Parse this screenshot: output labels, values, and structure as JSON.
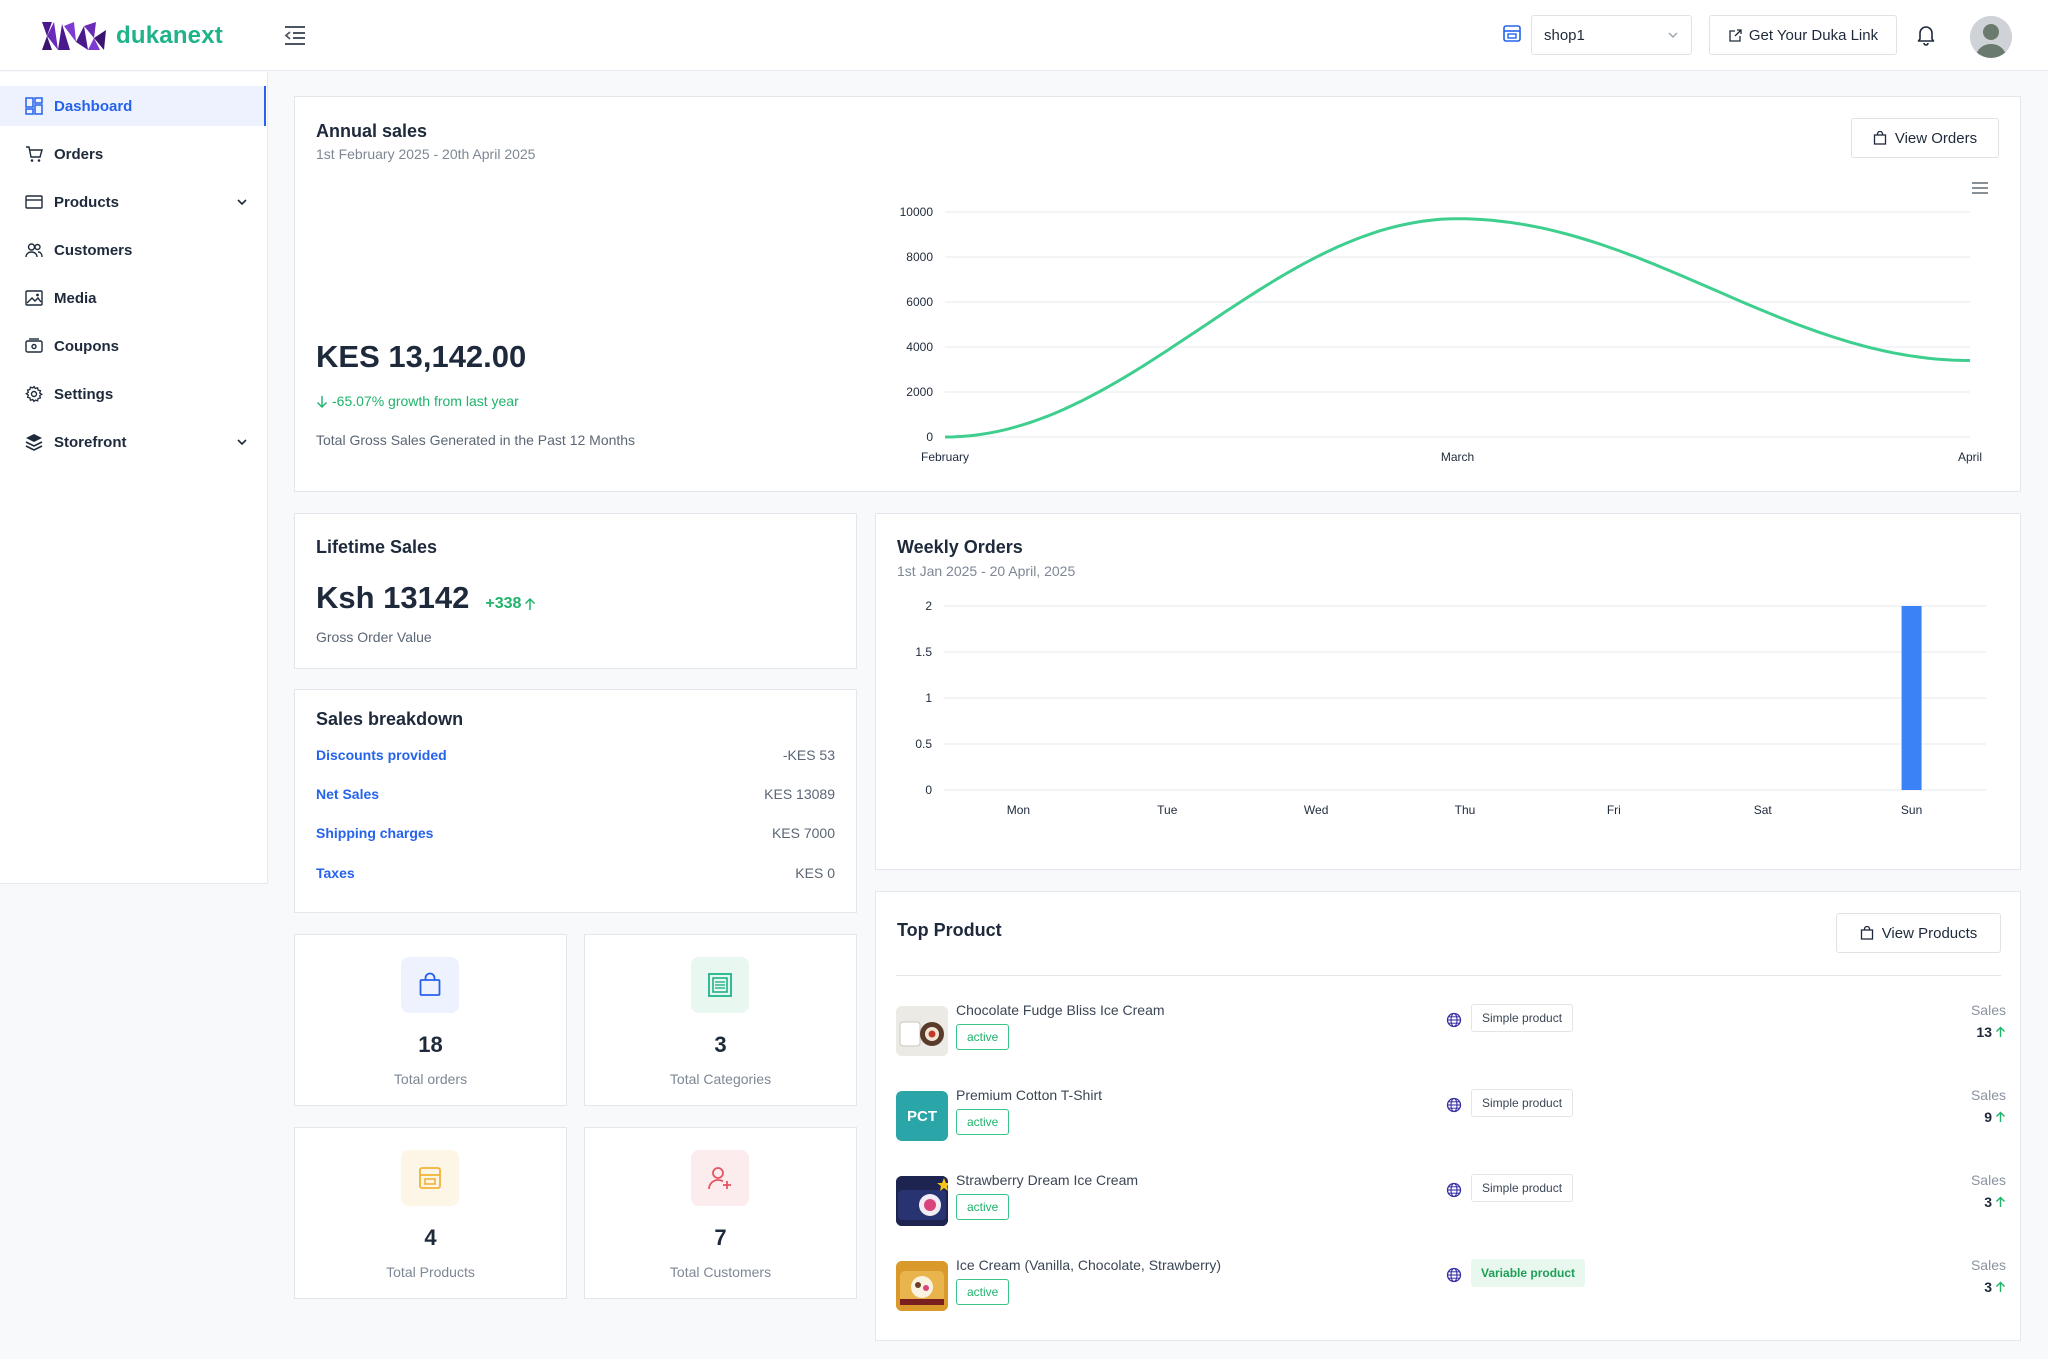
{
  "header": {
    "logo_text": "dukanext",
    "shop_selected": "shop1",
    "duka_link_label": "Get Your Duka Link"
  },
  "sidebar": {
    "items": [
      {
        "label": "Dashboard",
        "icon": "dashboard-icon"
      },
      {
        "label": "Orders",
        "icon": "cart-icon"
      },
      {
        "label": "Products",
        "icon": "box-icon"
      },
      {
        "label": "Customers",
        "icon": "users-icon"
      },
      {
        "label": "Media",
        "icon": "image-icon"
      },
      {
        "label": "Coupons",
        "icon": "ticket-icon"
      },
      {
        "label": "Settings",
        "icon": "gear-icon"
      },
      {
        "label": "Storefront",
        "icon": "layers-icon"
      }
    ]
  },
  "annual": {
    "title": "Annual sales",
    "subtitle": "1st February 2025 - 20th April 2025",
    "view_orders_label": "View Orders",
    "amount": "KES 13,142.00",
    "growth": "-65.07% growth from last year",
    "caption": "Total Gross Sales Generated in the Past 12 Months"
  },
  "lifetime": {
    "title": "Lifetime Sales",
    "amount": "Ksh 13142",
    "delta": "+338",
    "caption": "Gross Order Value"
  },
  "breakdown": {
    "title": "Sales breakdown",
    "rows": [
      {
        "label": "Discounts provided",
        "value": "-KES 53"
      },
      {
        "label": "Net Sales",
        "value": "KES 13089"
      },
      {
        "label": "Shipping charges",
        "value": "KES 7000"
      },
      {
        "label": "Taxes",
        "value": "KES 0"
      }
    ]
  },
  "stats": [
    {
      "value": "18",
      "label": "Total orders",
      "icon": "shopping-bag-icon",
      "color": "#2563eb",
      "bg": "#eef2ff"
    },
    {
      "value": "3",
      "label": "Total Categories",
      "icon": "category-icon",
      "color": "#1fb38a",
      "bg": "#e8f7f0"
    },
    {
      "value": "4",
      "label": "Total Products",
      "icon": "store-icon",
      "color": "#f2b134",
      "bg": "#fdf5e6"
    },
    {
      "value": "7",
      "label": "Total Customers",
      "icon": "add-user-icon",
      "color": "#e25563",
      "bg": "#fdecee"
    }
  ],
  "weekly": {
    "title": "Weekly Orders",
    "subtitle": "1st Jan 2025 - 20 April, 2025"
  },
  "top_product": {
    "title": "Top Product",
    "view_products_label": "View Products",
    "sales_label": "Sales",
    "items": [
      {
        "name": "Chocolate Fudge Bliss Ice Cream",
        "status": "active",
        "type": "Simple product",
        "sales": "13",
        "thumb": "icecream-chocolate"
      },
      {
        "name": "Premium Cotton T-Shirt",
        "status": "active",
        "type": "Simple product",
        "sales": "9",
        "thumb_text": "PCT"
      },
      {
        "name": "Strawberry Dream Ice Cream",
        "status": "active",
        "type": "Simple product",
        "sales": "3",
        "thumb": "icecream-strawberry"
      },
      {
        "name": "Ice Cream (Vanilla, Chocolate, Strawberry)",
        "status": "active",
        "type": "Variable product",
        "sales": "3",
        "thumb": "icecream-mixed"
      }
    ]
  },
  "chart_data": [
    {
      "type": "line",
      "x": [
        "February",
        "March",
        "April"
      ],
      "series": [
        {
          "values": [
            0,
            9700,
            3400
          ],
          "color": "#3ecf8e"
        }
      ],
      "xlabel": "",
      "ylabel": "",
      "ylim": [
        0,
        10000
      ],
      "yticks": [
        0,
        2000,
        4000,
        6000,
        8000,
        10000
      ],
      "grid": true
    },
    {
      "type": "bar",
      "categories": [
        "Mon",
        "Tue",
        "Wed",
        "Thu",
        "Fri",
        "Sat",
        "Sun"
      ],
      "series": [
        {
          "values": [
            0,
            0,
            0,
            0,
            0,
            0,
            2
          ],
          "color": "#3b82f6"
        }
      ],
      "xlabel": "",
      "ylabel": "",
      "ylim": [
        0,
        2
      ],
      "yticks": [
        0,
        0.5,
        1,
        1.5,
        2
      ],
      "grid": true
    }
  ]
}
